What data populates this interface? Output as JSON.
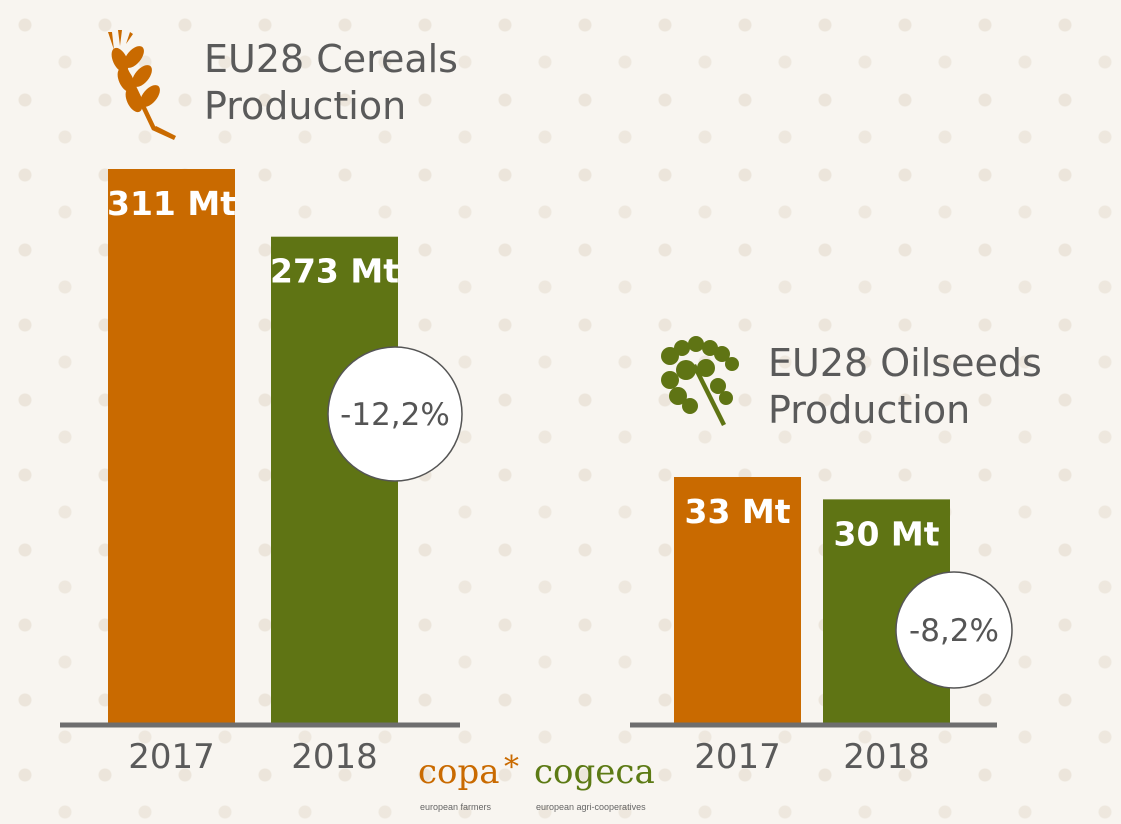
{
  "colors": {
    "orange": "#c96a00",
    "green": "#5f7414",
    "axis": "#6e6e6e",
    "text": "#5a5a5a"
  },
  "chart_data": [
    {
      "type": "bar",
      "title": "EU28 Cereals Production",
      "title_lines": [
        "EU28 Cereals",
        "Production"
      ],
      "icon": "wheat-icon",
      "categories": [
        "2017",
        "2018"
      ],
      "values": [
        311,
        273
      ],
      "value_labels": [
        "311 Mt",
        "273 Mt"
      ],
      "unit": "Mt",
      "bar_colors": [
        "#c96a00",
        "#5f7414"
      ],
      "change_label": "-12,2%",
      "ylim": [
        0,
        311
      ],
      "grid": false
    },
    {
      "type": "bar",
      "title": "EU28 Oilseeds Production",
      "title_lines": [
        "EU28 Oilseeds",
        "Production"
      ],
      "icon": "rapeseed-icon",
      "categories": [
        "2017",
        "2018"
      ],
      "values": [
        33,
        30
      ],
      "value_labels": [
        "33 Mt",
        "30 Mt"
      ],
      "unit": "Mt",
      "bar_colors": [
        "#c96a00",
        "#5f7414"
      ],
      "change_label": "-8,2%",
      "ylim": [
        0,
        33
      ],
      "grid": false
    }
  ],
  "logo": {
    "copa": "copa",
    "star": "*",
    "cogeca": "cogeca",
    "copa_sub": "european farmers",
    "cogeca_sub": "european agri-cooperatives"
  }
}
